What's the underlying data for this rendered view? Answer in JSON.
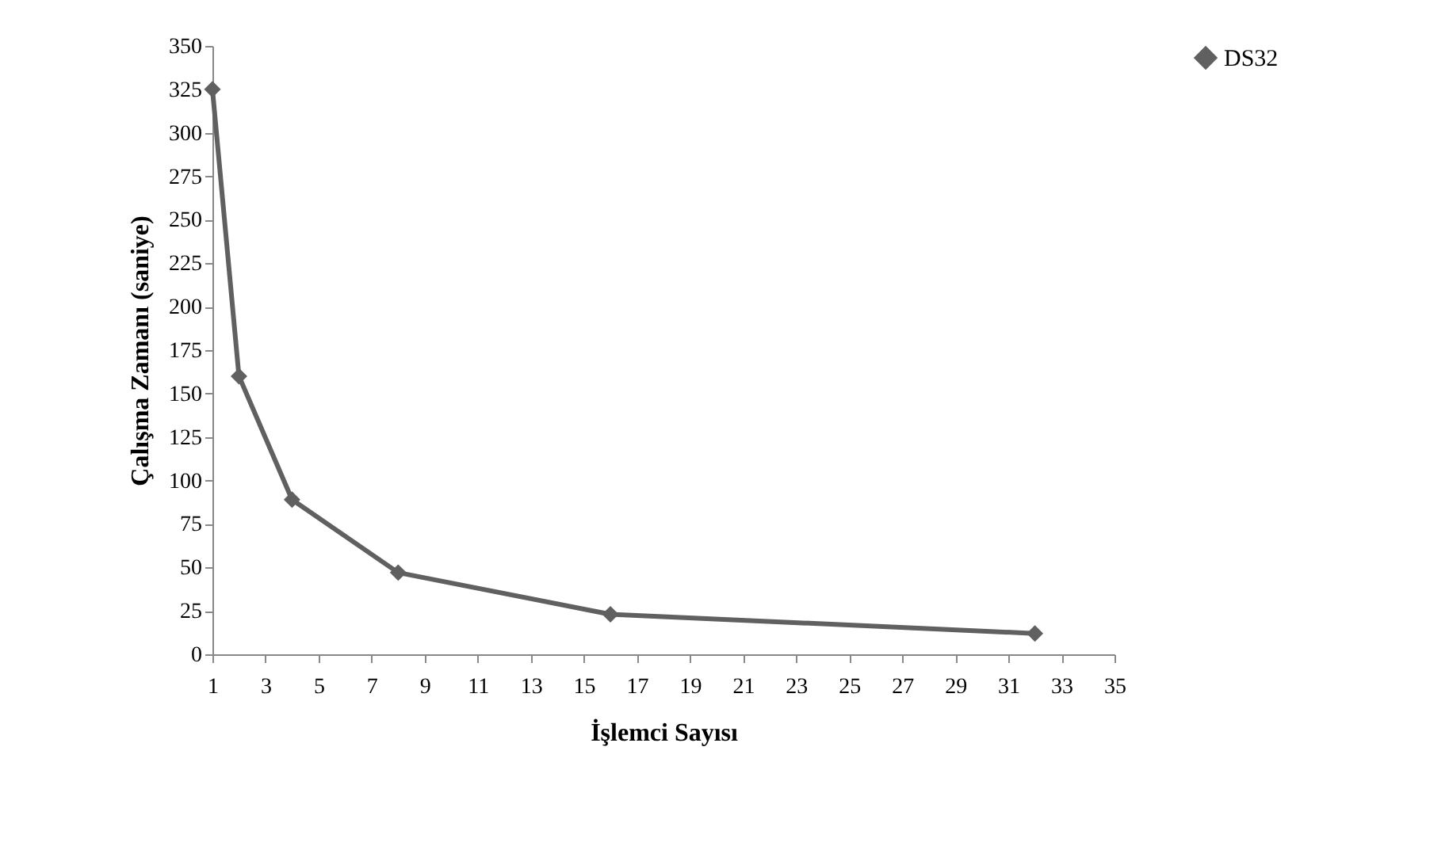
{
  "chart_data": {
    "type": "line",
    "xlabel": "İşlemci Sayısı",
    "ylabel": "Çalışma Zamanı (saniye)",
    "x": [
      1,
      2,
      4,
      8,
      16,
      32
    ],
    "series": [
      {
        "name": "DS32",
        "color": "#606060",
        "values": [
          325,
          160,
          89,
          47,
          23,
          12
        ]
      }
    ],
    "xlim": [
      1,
      35
    ],
    "xticks": [
      1,
      3,
      5,
      7,
      9,
      11,
      13,
      15,
      17,
      19,
      21,
      23,
      25,
      27,
      29,
      31,
      33,
      35
    ],
    "ylim": [
      0,
      350
    ],
    "yticks": [
      0,
      25,
      50,
      75,
      100,
      125,
      150,
      175,
      200,
      225,
      250,
      275,
      300,
      325,
      350
    ],
    "grid": false,
    "legend": "top right",
    "marker": "diamond",
    "line_style": "solid"
  }
}
